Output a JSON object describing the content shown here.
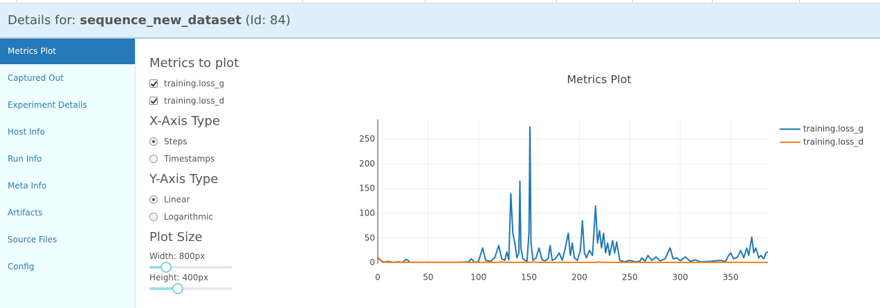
{
  "header": {
    "prefix": "Details for:",
    "name": "sequence_new_dataset",
    "id": "(Id: 84)"
  },
  "sidebar": {
    "items": [
      "Metrics Plot",
      "Captured Out",
      "Experiment Details",
      "Host Info",
      "Run Info",
      "Meta Info",
      "Artifacts",
      "Source Files",
      "Config"
    ],
    "active": 0
  },
  "controls": {
    "metrics_title": "Metrics to plot",
    "metrics": [
      {
        "label": "training.loss_g",
        "checked": true
      },
      {
        "label": "training.loss_d",
        "checked": true
      }
    ],
    "x_axis_title": "X-Axis Type",
    "x_axis_options": [
      {
        "label": "Steps",
        "selected": true
      },
      {
        "label": "Timestamps",
        "selected": false
      }
    ],
    "y_axis_title": "Y-Axis Type",
    "y_axis_options": [
      {
        "label": "Linear",
        "selected": true
      },
      {
        "label": "Logarithmic",
        "selected": false
      }
    ],
    "plot_size_title": "Plot Size",
    "width_label": "Width: 800px",
    "height_label": "Height: 400px"
  },
  "chart_data": {
    "type": "line",
    "title": "Metrics Plot",
    "x": [
      0,
      3,
      6,
      10,
      15,
      20,
      25,
      28,
      30,
      32,
      40,
      50,
      60,
      70,
      80,
      90,
      93,
      96,
      100,
      104,
      107,
      112,
      116,
      120,
      123,
      126,
      128,
      130,
      132,
      134,
      136,
      138,
      140,
      141,
      142,
      144,
      146,
      148,
      150,
      151,
      152,
      154,
      157,
      160,
      163,
      166,
      169,
      171,
      173,
      176,
      180,
      183,
      186,
      189,
      191,
      193,
      195,
      198,
      201,
      203,
      205,
      207,
      210,
      213,
      216,
      218,
      220,
      222,
      224,
      226,
      228,
      230,
      233,
      235,
      237,
      240,
      245,
      250,
      255,
      260,
      262,
      265,
      268,
      272,
      276,
      280,
      285,
      290,
      293,
      297,
      300,
      305,
      310,
      315,
      320,
      330,
      340,
      345,
      348,
      350,
      353,
      357,
      360,
      363,
      366,
      368,
      371,
      373,
      375,
      378,
      380,
      383,
      385,
      387
    ],
    "series": [
      {
        "name": "training.loss_g",
        "color": "#1f77b4",
        "values": [
          10,
          4,
          1,
          3,
          1,
          2,
          1,
          7,
          5,
          1,
          1,
          1,
          1,
          1,
          1,
          2,
          8,
          1,
          3,
          30,
          5,
          3,
          10,
          35,
          8,
          5,
          22,
          6,
          140,
          60,
          40,
          10,
          20,
          165,
          30,
          8,
          5,
          3,
          60,
          275,
          40,
          5,
          10,
          30,
          6,
          4,
          8,
          35,
          5,
          8,
          20,
          5,
          30,
          60,
          15,
          40,
          10,
          5,
          25,
          85,
          20,
          10,
          25,
          15,
          115,
          40,
          65,
          30,
          60,
          20,
          40,
          15,
          45,
          20,
          42,
          5,
          2,
          5,
          2,
          3,
          10,
          3,
          15,
          5,
          12,
          4,
          8,
          30,
          8,
          10,
          4,
          12,
          3,
          6,
          2,
          3,
          5,
          3,
          15,
          20,
          8,
          12,
          25,
          10,
          30,
          15,
          52,
          20,
          30,
          10,
          15,
          8,
          20,
          22
        ]
      },
      {
        "name": "training.loss_d",
        "color": "#ff7f0e",
        "values": [
          12,
          5,
          2,
          1,
          1,
          1,
          1,
          1,
          1,
          1,
          1,
          1,
          1,
          1,
          1,
          1,
          1,
          1,
          1,
          1,
          1,
          1,
          1,
          1,
          2,
          1,
          1,
          1,
          1,
          1,
          1,
          1,
          1,
          1,
          1,
          1,
          1,
          1,
          1,
          1,
          1,
          2,
          1,
          1,
          1,
          1,
          1,
          1,
          1,
          1,
          1,
          1,
          1,
          1,
          1,
          1,
          1,
          1,
          1,
          1,
          1,
          1,
          1,
          1,
          1,
          1,
          2,
          1,
          1,
          1,
          1,
          1,
          1,
          1,
          1,
          1,
          1,
          1,
          1,
          1,
          1,
          1,
          1,
          1,
          1,
          1,
          1,
          1,
          1,
          1,
          1,
          1,
          1,
          1,
          1,
          1,
          1,
          1,
          1,
          1,
          1,
          1,
          1,
          1,
          1,
          1,
          1,
          1,
          1,
          1,
          1,
          1,
          1,
          1
        ]
      }
    ],
    "xlim": [
      0,
      387
    ],
    "ylim": [
      -2,
      290
    ],
    "xticks": [
      0,
      50,
      100,
      150,
      200,
      250,
      300,
      350
    ],
    "yticks": [
      0,
      50,
      100,
      150,
      200,
      250
    ],
    "grid": true,
    "legend": "right"
  }
}
